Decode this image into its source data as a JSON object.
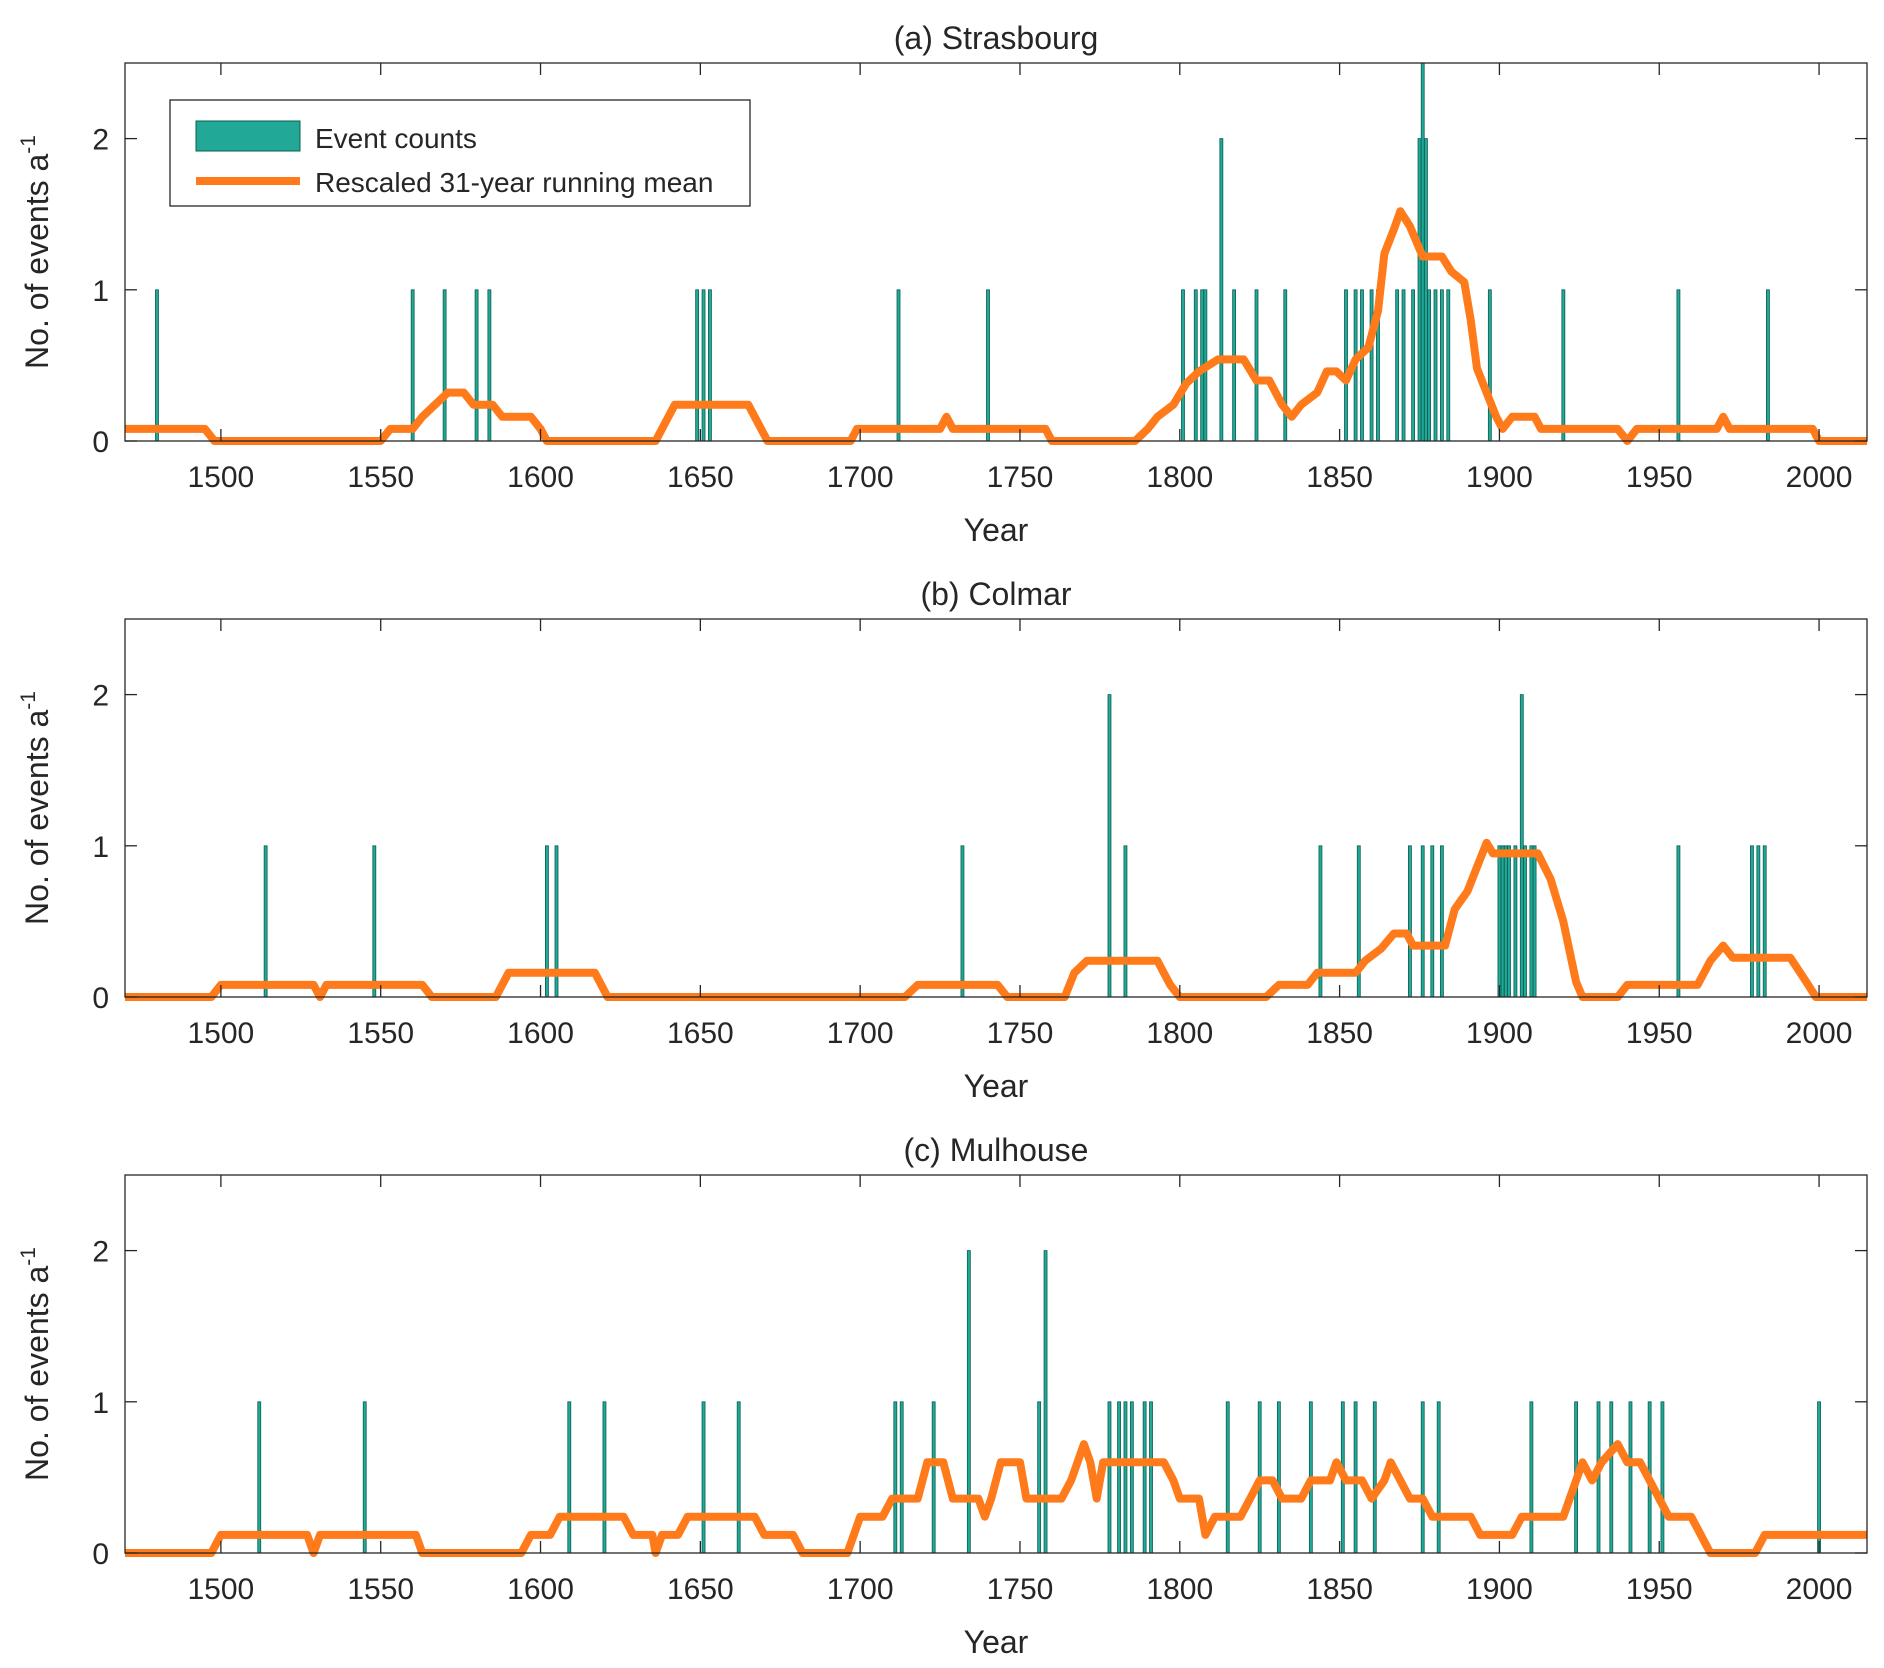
{
  "figure": {
    "background": "#ffffff"
  },
  "colors": {
    "bar": "#21a896",
    "bar_edge": "#0d5e53",
    "line": "#ff7a1a",
    "axis": "#262626"
  },
  "legend": {
    "bar_label": "Event counts",
    "line_label": "Rescaled 31-year running mean",
    "placement": "top-left"
  },
  "chart_data": [
    {
      "type": "bar",
      "title": "(a) Strasbourg",
      "xlabel": "Year",
      "ylabel": "No. of events a",
      "ylabel_sup": "-1",
      "xlim": [
        1470,
        2015
      ],
      "ylim": [
        0,
        2.5
      ],
      "xticks": [
        1500,
        1550,
        1600,
        1650,
        1700,
        1750,
        1800,
        1850,
        1900,
        1950,
        2000
      ],
      "yticks": [
        0,
        1,
        2
      ],
      "bars": [
        {
          "x": 1480,
          "y": 1
        },
        {
          "x": 1560,
          "y": 1
        },
        {
          "x": 1570,
          "y": 1
        },
        {
          "x": 1580,
          "y": 1
        },
        {
          "x": 1584,
          "y": 1
        },
        {
          "x": 1649,
          "y": 1
        },
        {
          "x": 1651,
          "y": 1
        },
        {
          "x": 1653,
          "y": 1
        },
        {
          "x": 1712,
          "y": 1
        },
        {
          "x": 1740,
          "y": 1
        },
        {
          "x": 1801,
          "y": 1
        },
        {
          "x": 1805,
          "y": 1
        },
        {
          "x": 1807,
          "y": 1
        },
        {
          "x": 1808,
          "y": 1
        },
        {
          "x": 1813,
          "y": 2
        },
        {
          "x": 1817,
          "y": 1
        },
        {
          "x": 1824,
          "y": 1
        },
        {
          "x": 1833,
          "y": 1
        },
        {
          "x": 1852,
          "y": 1
        },
        {
          "x": 1855,
          "y": 1
        },
        {
          "x": 1857,
          "y": 1
        },
        {
          "x": 1860,
          "y": 1
        },
        {
          "x": 1862,
          "y": 1
        },
        {
          "x": 1868,
          "y": 1
        },
        {
          "x": 1870,
          "y": 1
        },
        {
          "x": 1873,
          "y": 1
        },
        {
          "x": 1875,
          "y": 2
        },
        {
          "x": 1876,
          "y": 2.5
        },
        {
          "x": 1877,
          "y": 2
        },
        {
          "x": 1878,
          "y": 1
        },
        {
          "x": 1880,
          "y": 1
        },
        {
          "x": 1882,
          "y": 1
        },
        {
          "x": 1884,
          "y": 1
        },
        {
          "x": 1897,
          "y": 1
        },
        {
          "x": 1920,
          "y": 1
        },
        {
          "x": 1956,
          "y": 1
        },
        {
          "x": 1984,
          "y": 1
        }
      ],
      "line": [
        [
          1470,
          0.08
        ],
        [
          1495,
          0.08
        ],
        [
          1498,
          0
        ],
        [
          1550,
          0
        ],
        [
          1553,
          0.08
        ],
        [
          1560,
          0.08
        ],
        [
          1563,
          0.16
        ],
        [
          1567,
          0.24
        ],
        [
          1571,
          0.32
        ],
        [
          1576,
          0.32
        ],
        [
          1579,
          0.24
        ],
        [
          1585,
          0.24
        ],
        [
          1588,
          0.16
        ],
        [
          1597,
          0.16
        ],
        [
          1600,
          0.08
        ],
        [
          1602,
          0
        ],
        [
          1636,
          0
        ],
        [
          1640,
          0.16
        ],
        [
          1642,
          0.24
        ],
        [
          1665,
          0.24
        ],
        [
          1669,
          0.08
        ],
        [
          1671,
          0
        ],
        [
          1697,
          0
        ],
        [
          1699,
          0.08
        ],
        [
          1725,
          0.08
        ],
        [
          1727,
          0.16
        ],
        [
          1729,
          0.08
        ],
        [
          1758,
          0.08
        ],
        [
          1760,
          0
        ],
        [
          1786,
          0
        ],
        [
          1790,
          0.08
        ],
        [
          1793,
          0.16
        ],
        [
          1798,
          0.24
        ],
        [
          1802,
          0.38
        ],
        [
          1806,
          0.46
        ],
        [
          1812,
          0.54
        ],
        [
          1820,
          0.54
        ],
        [
          1824,
          0.4
        ],
        [
          1828,
          0.4
        ],
        [
          1832,
          0.24
        ],
        [
          1835,
          0.16
        ],
        [
          1838,
          0.24
        ],
        [
          1843,
          0.32
        ],
        [
          1846,
          0.46
        ],
        [
          1849,
          0.46
        ],
        [
          1852,
          0.4
        ],
        [
          1855,
          0.54
        ],
        [
          1859,
          0.62
        ],
        [
          1862,
          0.86
        ],
        [
          1864,
          1.24
        ],
        [
          1867,
          1.4
        ],
        [
          1869,
          1.52
        ],
        [
          1872,
          1.42
        ],
        [
          1876,
          1.22
        ],
        [
          1879,
          1.22
        ],
        [
          1882,
          1.22
        ],
        [
          1885,
          1.12
        ],
        [
          1889,
          1.05
        ],
        [
          1891,
          0.8
        ],
        [
          1893,
          0.48
        ],
        [
          1896,
          0.32
        ],
        [
          1899,
          0.16
        ],
        [
          1901,
          0.08
        ],
        [
          1904,
          0.16
        ],
        [
          1911,
          0.16
        ],
        [
          1913,
          0.08
        ],
        [
          1937,
          0.08
        ],
        [
          1940,
          0
        ],
        [
          1943,
          0.08
        ],
        [
          1968,
          0.08
        ],
        [
          1970,
          0.16
        ],
        [
          1972,
          0.08
        ],
        [
          1998,
          0.08
        ],
        [
          2000,
          0
        ],
        [
          2015,
          0
        ]
      ]
    },
    {
      "type": "bar",
      "title": "(b) Colmar",
      "xlabel": "Year",
      "ylabel": "No. of events a",
      "ylabel_sup": "-1",
      "xlim": [
        1470,
        2015
      ],
      "ylim": [
        0,
        2.5
      ],
      "xticks": [
        1500,
        1550,
        1600,
        1650,
        1700,
        1750,
        1800,
        1850,
        1900,
        1950,
        2000
      ],
      "yticks": [
        0,
        1,
        2
      ],
      "bars": [
        {
          "x": 1514,
          "y": 1
        },
        {
          "x": 1548,
          "y": 1
        },
        {
          "x": 1602,
          "y": 1
        },
        {
          "x": 1605,
          "y": 1
        },
        {
          "x": 1732,
          "y": 1
        },
        {
          "x": 1778,
          "y": 2
        },
        {
          "x": 1783,
          "y": 1
        },
        {
          "x": 1844,
          "y": 1
        },
        {
          "x": 1856,
          "y": 1
        },
        {
          "x": 1872,
          "y": 1
        },
        {
          "x": 1876,
          "y": 1
        },
        {
          "x": 1879,
          "y": 1
        },
        {
          "x": 1882,
          "y": 1
        },
        {
          "x": 1900,
          "y": 1
        },
        {
          "x": 1901,
          "y": 1
        },
        {
          "x": 1902,
          "y": 1
        },
        {
          "x": 1903,
          "y": 1
        },
        {
          "x": 1905,
          "y": 1
        },
        {
          "x": 1907,
          "y": 2
        },
        {
          "x": 1908,
          "y": 1
        },
        {
          "x": 1910,
          "y": 1
        },
        {
          "x": 1911,
          "y": 1
        },
        {
          "x": 1956,
          "y": 1
        },
        {
          "x": 1979,
          "y": 1
        },
        {
          "x": 1981,
          "y": 1
        },
        {
          "x": 1983,
          "y": 1
        }
      ],
      "line": [
        [
          1470,
          0
        ],
        [
          1497,
          0
        ],
        [
          1500,
          0.08
        ],
        [
          1529,
          0.08
        ],
        [
          1531,
          0
        ],
        [
          1533,
          0.08
        ],
        [
          1563,
          0.08
        ],
        [
          1566,
          0
        ],
        [
          1586,
          0
        ],
        [
          1590,
          0.16
        ],
        [
          1617,
          0.16
        ],
        [
          1621,
          0
        ],
        [
          1714,
          0
        ],
        [
          1718,
          0.08
        ],
        [
          1743,
          0.08
        ],
        [
          1746,
          0
        ],
        [
          1764,
          0
        ],
        [
          1767,
          0.16
        ],
        [
          1771,
          0.24
        ],
        [
          1793,
          0.24
        ],
        [
          1797,
          0.08
        ],
        [
          1800,
          0
        ],
        [
          1827,
          0
        ],
        [
          1831,
          0.08
        ],
        [
          1840,
          0.08
        ],
        [
          1843,
          0.16
        ],
        [
          1855,
          0.16
        ],
        [
          1858,
          0.24
        ],
        [
          1863,
          0.32
        ],
        [
          1867,
          0.42
        ],
        [
          1871,
          0.42
        ],
        [
          1873,
          0.34
        ],
        [
          1883,
          0.34
        ],
        [
          1886,
          0.58
        ],
        [
          1890,
          0.7
        ],
        [
          1893,
          0.86
        ],
        [
          1896,
          1.02
        ],
        [
          1898,
          0.95
        ],
        [
          1912,
          0.95
        ],
        [
          1916,
          0.78
        ],
        [
          1920,
          0.5
        ],
        [
          1924,
          0.1
        ],
        [
          1926,
          0
        ],
        [
          1937,
          0
        ],
        [
          1940,
          0.08
        ],
        [
          1962,
          0.08
        ],
        [
          1966,
          0.24
        ],
        [
          1970,
          0.34
        ],
        [
          1973,
          0.26
        ],
        [
          1991,
          0.26
        ],
        [
          1996,
          0.1
        ],
        [
          1999,
          0
        ],
        [
          2015,
          0
        ]
      ]
    },
    {
      "type": "bar",
      "title": "(c)  Mulhouse",
      "xlabel": "Year",
      "ylabel": "No. of events a",
      "ylabel_sup": "-1",
      "xlim": [
        1470,
        2015
      ],
      "ylim": [
        0,
        2.5
      ],
      "xticks": [
        1500,
        1550,
        1600,
        1650,
        1700,
        1750,
        1800,
        1850,
        1900,
        1950,
        2000
      ],
      "yticks": [
        0,
        1,
        2
      ],
      "bars": [
        {
          "x": 1512,
          "y": 1
        },
        {
          "x": 1545,
          "y": 1
        },
        {
          "x": 1609,
          "y": 1
        },
        {
          "x": 1620,
          "y": 1
        },
        {
          "x": 1651,
          "y": 1
        },
        {
          "x": 1662,
          "y": 1
        },
        {
          "x": 1711,
          "y": 1
        },
        {
          "x": 1713,
          "y": 1
        },
        {
          "x": 1723,
          "y": 1
        },
        {
          "x": 1734,
          "y": 2
        },
        {
          "x": 1756,
          "y": 1
        },
        {
          "x": 1758,
          "y": 2
        },
        {
          "x": 1778,
          "y": 1
        },
        {
          "x": 1781,
          "y": 1
        },
        {
          "x": 1783,
          "y": 1
        },
        {
          "x": 1785,
          "y": 1
        },
        {
          "x": 1789,
          "y": 1
        },
        {
          "x": 1791,
          "y": 1
        },
        {
          "x": 1815,
          "y": 1
        },
        {
          "x": 1825,
          "y": 1
        },
        {
          "x": 1831,
          "y": 1
        },
        {
          "x": 1841,
          "y": 1
        },
        {
          "x": 1851,
          "y": 1
        },
        {
          "x": 1855,
          "y": 1
        },
        {
          "x": 1861,
          "y": 1
        },
        {
          "x": 1876,
          "y": 1
        },
        {
          "x": 1881,
          "y": 1
        },
        {
          "x": 1910,
          "y": 1
        },
        {
          "x": 1924,
          "y": 1
        },
        {
          "x": 1931,
          "y": 1
        },
        {
          "x": 1935,
          "y": 1
        },
        {
          "x": 1941,
          "y": 1
        },
        {
          "x": 1947,
          "y": 1
        },
        {
          "x": 1951,
          "y": 1
        },
        {
          "x": 2000,
          "y": 1
        }
      ],
      "line": [
        [
          1470,
          0
        ],
        [
          1497,
          0
        ],
        [
          1500,
          0.12
        ],
        [
          1527,
          0.12
        ],
        [
          1529,
          0
        ],
        [
          1531,
          0.12
        ],
        [
          1561,
          0.12
        ],
        [
          1563,
          0
        ],
        [
          1594,
          0
        ],
        [
          1597,
          0.12
        ],
        [
          1603,
          0.12
        ],
        [
          1606,
          0.24
        ],
        [
          1626,
          0.24
        ],
        [
          1629,
          0.12
        ],
        [
          1635,
          0.12
        ],
        [
          1636,
          0
        ],
        [
          1638,
          0.12
        ],
        [
          1643,
          0.12
        ],
        [
          1646,
          0.24
        ],
        [
          1667,
          0.24
        ],
        [
          1670,
          0.12
        ],
        [
          1679,
          0.12
        ],
        [
          1682,
          0
        ],
        [
          1696,
          0
        ],
        [
          1700,
          0.24
        ],
        [
          1707,
          0.24
        ],
        [
          1710,
          0.36
        ],
        [
          1718,
          0.36
        ],
        [
          1721,
          0.6
        ],
        [
          1726,
          0.6
        ],
        [
          1729,
          0.36
        ],
        [
          1737,
          0.36
        ],
        [
          1739,
          0.24
        ],
        [
          1741,
          0.36
        ],
        [
          1744,
          0.6
        ],
        [
          1750,
          0.6
        ],
        [
          1752,
          0.36
        ],
        [
          1763,
          0.36
        ],
        [
          1766,
          0.48
        ],
        [
          1768,
          0.6
        ],
        [
          1770,
          0.72
        ],
        [
          1772,
          0.6
        ],
        [
          1774,
          0.36
        ],
        [
          1776,
          0.6
        ],
        [
          1795,
          0.6
        ],
        [
          1798,
          0.48
        ],
        [
          1800,
          0.36
        ],
        [
          1806,
          0.36
        ],
        [
          1808,
          0.12
        ],
        [
          1811,
          0.24
        ],
        [
          1819,
          0.24
        ],
        [
          1822,
          0.36
        ],
        [
          1825,
          0.48
        ],
        [
          1829,
          0.48
        ],
        [
          1832,
          0.36
        ],
        [
          1838,
          0.36
        ],
        [
          1841,
          0.48
        ],
        [
          1847,
          0.48
        ],
        [
          1849,
          0.6
        ],
        [
          1852,
          0.48
        ],
        [
          1857,
          0.48
        ],
        [
          1860,
          0.36
        ],
        [
          1864,
          0.48
        ],
        [
          1866,
          0.6
        ],
        [
          1869,
          0.48
        ],
        [
          1872,
          0.36
        ],
        [
          1876,
          0.36
        ],
        [
          1879,
          0.24
        ],
        [
          1891,
          0.24
        ],
        [
          1894,
          0.12
        ],
        [
          1904,
          0.12
        ],
        [
          1907,
          0.24
        ],
        [
          1920,
          0.24
        ],
        [
          1924,
          0.48
        ],
        [
          1926,
          0.6
        ],
        [
          1929,
          0.48
        ],
        [
          1932,
          0.6
        ],
        [
          1937,
          0.72
        ],
        [
          1940,
          0.6
        ],
        [
          1944,
          0.6
        ],
        [
          1947,
          0.48
        ],
        [
          1950,
          0.36
        ],
        [
          1953,
          0.24
        ],
        [
          1960,
          0.24
        ],
        [
          1963,
          0.12
        ],
        [
          1966,
          0
        ],
        [
          1980,
          0
        ],
        [
          1983,
          0.12
        ],
        [
          2015,
          0.12
        ]
      ]
    }
  ]
}
